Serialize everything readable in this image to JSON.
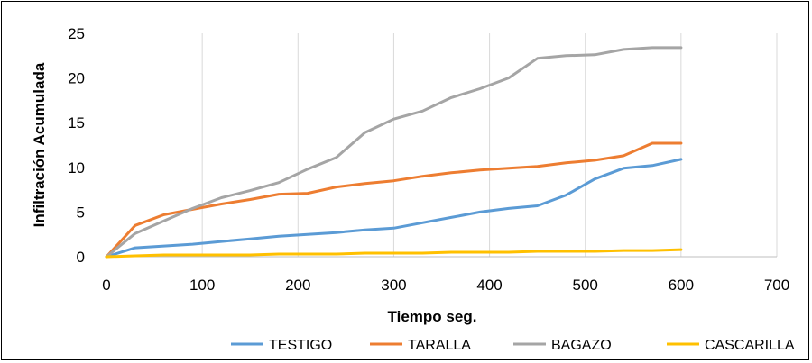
{
  "chart_data": {
    "type": "line",
    "title": "",
    "xlabel": "Tiempo seg.",
    "ylabel": "Infiltración Acumulada",
    "xlim": [
      0,
      700
    ],
    "ylim": [
      0,
      25
    ],
    "xticks": [
      0,
      100,
      200,
      300,
      400,
      500,
      600,
      700
    ],
    "yticks": [
      0,
      5,
      10,
      15,
      20,
      25
    ],
    "grid": "vertical",
    "legend": "bottom",
    "x": [
      0,
      30,
      60,
      90,
      120,
      150,
      180,
      210,
      240,
      270,
      300,
      330,
      360,
      390,
      420,
      450,
      480,
      510,
      540,
      570,
      600
    ],
    "series": [
      {
        "name": "TESTIGO",
        "color": "#5B9BD5",
        "values": [
          0,
          1.0,
          1.2,
          1.4,
          1.7,
          2.0,
          2.3,
          2.5,
          2.7,
          3.0,
          3.2,
          3.8,
          4.4,
          5.0,
          5.4,
          5.7,
          6.9,
          8.7,
          9.9,
          10.2,
          10.9
        ]
      },
      {
        "name": "TARALLA",
        "color": "#ED7D31",
        "values": [
          0,
          3.5,
          4.7,
          5.3,
          5.9,
          6.4,
          7.0,
          7.1,
          7.8,
          8.2,
          8.5,
          9.0,
          9.4,
          9.7,
          9.9,
          10.1,
          10.5,
          10.8,
          11.3,
          12.7,
          12.7
        ]
      },
      {
        "name": "BAGAZO",
        "color": "#A5A5A5",
        "values": [
          0,
          2.6,
          4.0,
          5.4,
          6.6,
          7.4,
          8.3,
          9.8,
          11.1,
          13.9,
          15.4,
          16.3,
          17.8,
          18.8,
          20.0,
          22.2,
          22.5,
          22.6,
          23.2,
          23.4,
          23.4
        ]
      },
      {
        "name": "CASCARILLA",
        "color": "#FFC000",
        "values": [
          0,
          0.1,
          0.2,
          0.2,
          0.2,
          0.2,
          0.3,
          0.3,
          0.3,
          0.4,
          0.4,
          0.4,
          0.5,
          0.5,
          0.5,
          0.6,
          0.6,
          0.6,
          0.7,
          0.7,
          0.8
        ]
      }
    ]
  }
}
